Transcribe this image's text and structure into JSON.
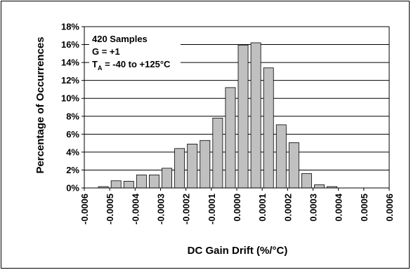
{
  "chart_data": {
    "type": "bar",
    "title": "",
    "xlabel": "DC Gain Drift (%/°C)",
    "ylabel": "Percentage of Occurrences",
    "x_tick_labels": [
      "-0.0006",
      "-0.0005",
      "-0.0004",
      "-0.0003",
      "-0.0002",
      "-0.0001",
      "0.0000",
      "0.0001",
      "0.0002",
      "0.0003",
      "0.0004",
      "0.0005",
      "0.0006"
    ],
    "y_tick_labels": [
      "0%",
      "2%",
      "4%",
      "6%",
      "8%",
      "10%",
      "12%",
      "14%",
      "16%",
      "18%"
    ],
    "ylim": [
      0,
      18
    ],
    "xlim": [
      -0.0006,
      0.0006
    ],
    "bin_width": 5e-05,
    "grid": "horizontal",
    "bars": [
      {
        "x": -0.000575,
        "value": 0.0
      },
      {
        "x": -0.000525,
        "value": 0.15
      },
      {
        "x": -0.000475,
        "value": 0.8
      },
      {
        "x": -0.000425,
        "value": 0.75
      },
      {
        "x": -0.000375,
        "value": 1.45
      },
      {
        "x": -0.000325,
        "value": 1.45
      },
      {
        "x": -0.000275,
        "value": 2.2
      },
      {
        "x": -0.000225,
        "value": 4.4
      },
      {
        "x": -0.000175,
        "value": 4.9
      },
      {
        "x": -0.000125,
        "value": 5.3
      },
      {
        "x": -7.5e-05,
        "value": 7.8
      },
      {
        "x": -2.5e-05,
        "value": 11.2
      },
      {
        "x": 2.5e-05,
        "value": 15.95
      },
      {
        "x": 7.5e-05,
        "value": 16.2
      },
      {
        "x": 0.000125,
        "value": 13.4
      },
      {
        "x": 0.000175,
        "value": 7.05
      },
      {
        "x": 0.000225,
        "value": 5.05
      },
      {
        "x": 0.000275,
        "value": 1.6
      },
      {
        "x": 0.000325,
        "value": 0.35
      },
      {
        "x": 0.000375,
        "value": 0.15
      },
      {
        "x": 0.000425,
        "value": 0.0
      },
      {
        "x": 0.000475,
        "value": 0.0
      },
      {
        "x": 0.000525,
        "value": 0.0
      },
      {
        "x": 0.000575,
        "value": 0.0
      }
    ],
    "annotations": {
      "line1": "420 Samples",
      "line2": "G = +1",
      "line3_main": "T",
      "line3_sub": "A",
      "line3_rest": " = -40 to +125°C"
    },
    "colors": {
      "bar_fill": "#c0c0c0",
      "bar_stroke": "#000000",
      "grid": "#000000"
    }
  }
}
